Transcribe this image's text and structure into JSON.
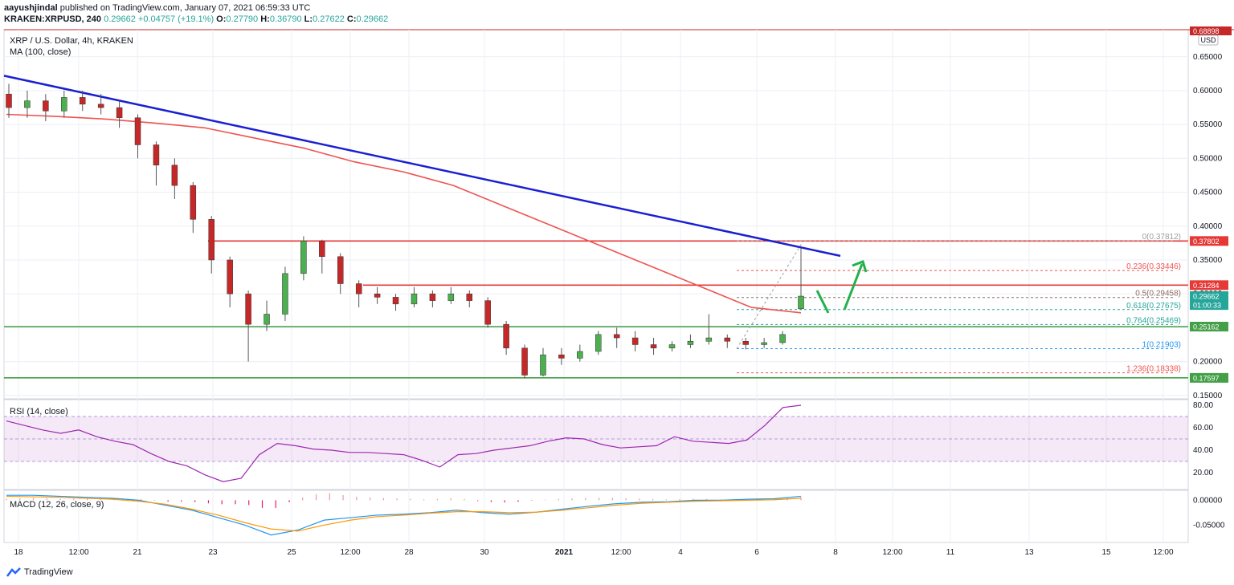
{
  "header": {
    "publisher": "aayushjindal",
    "published_text": "published on TradingView.com, January 07, 2021 06:59:33 UTC",
    "symbol": "KRAKEN:XRPUSD, 240",
    "last": "0.29662",
    "change": "+0.04757 (+19.1%)",
    "ohlc": [
      {
        "k": "O:",
        "v": "0.27790"
      },
      {
        "k": "H:",
        "v": "0.36790"
      },
      {
        "k": "L:",
        "v": "0.27622"
      },
      {
        "k": "C:",
        "v": "0.29662"
      }
    ]
  },
  "main_pane": {
    "title": "XRP / U.S. Dollar, 4h, KRAKEN",
    "indicator": "MA (100, close)",
    "currency": "USD",
    "top_label": "0.68898"
  },
  "rsi_pane": {
    "title": "RSI (14, close)"
  },
  "macd_pane": {
    "title": "MACD (12, 26, close, 9)"
  },
  "footer": {
    "brand": "TradingView"
  },
  "colors": {
    "up": "#26a69a",
    "down": "#ef5350",
    "candle_up": "#4caf50",
    "candle_down": "#c62828",
    "trendline": "#1a1fd1",
    "ma": "#ef5350",
    "resistance": "#e53935",
    "support": "#43a047",
    "arrow": "#22b14c",
    "rsi": "#9c27b0",
    "macd": "#2196f3",
    "signal": "#ff9800"
  },
  "chart_data": [
    {
      "type": "candlestick",
      "title": "XRP / U.S. Dollar, 4h, KRAKEN",
      "x_ticks": [
        "18",
        "12:00",
        "21",
        "23",
        "25",
        "12:00",
        "28",
        "30",
        "2021",
        "12:00",
        "4",
        "6",
        "8",
        "12:00",
        "11",
        "13",
        "15",
        "12:00"
      ],
      "y_ticks": [
        "0.65000",
        "0.60000",
        "0.55000",
        "0.50000",
        "0.45000",
        "0.40000",
        "0.35000",
        "0.30000",
        "0.25000",
        "0.20000",
        "0.15000"
      ],
      "ylim": [
        0.145,
        0.69
      ],
      "series": [
        {
          "name": "MA (100, close)",
          "values": [
            0.565,
            0.562,
            0.558,
            0.552,
            0.545,
            0.53,
            0.515,
            0.495,
            0.48,
            0.46,
            0.43,
            0.4,
            0.37,
            0.34,
            0.31,
            0.28,
            0.272
          ]
        },
        {
          "name": "Trend line",
          "from": [
            0.622,
            "start"
          ],
          "to": [
            0.356,
            "~Jan 8"
          ]
        }
      ],
      "candles": [
        [
          0.595,
          0.575,
          0.61,
          0.56
        ],
        [
          0.575,
          0.585,
          0.6,
          0.56
        ],
        [
          0.585,
          0.57,
          0.595,
          0.555
        ],
        [
          0.57,
          0.59,
          0.6,
          0.56
        ],
        [
          0.59,
          0.58,
          0.6,
          0.57
        ],
        [
          0.58,
          0.575,
          0.595,
          0.565
        ],
        [
          0.575,
          0.56,
          0.585,
          0.545
        ],
        [
          0.56,
          0.52,
          0.565,
          0.5
        ],
        [
          0.52,
          0.49,
          0.525,
          0.46
        ],
        [
          0.49,
          0.46,
          0.5,
          0.44
        ],
        [
          0.46,
          0.41,
          0.465,
          0.39
        ],
        [
          0.41,
          0.35,
          0.415,
          0.33
        ],
        [
          0.35,
          0.3,
          0.355,
          0.28
        ],
        [
          0.3,
          0.255,
          0.305,
          0.2
        ],
        [
          0.255,
          0.27,
          0.29,
          0.245
        ],
        [
          0.27,
          0.33,
          0.34,
          0.26
        ],
        [
          0.33,
          0.378,
          0.385,
          0.32
        ],
        [
          0.378,
          0.355,
          0.38,
          0.33
        ],
        [
          0.355,
          0.315,
          0.36,
          0.3
        ],
        [
          0.315,
          0.3,
          0.32,
          0.28
        ],
        [
          0.3,
          0.295,
          0.31,
          0.285
        ],
        [
          0.295,
          0.285,
          0.3,
          0.275
        ],
        [
          0.285,
          0.3,
          0.31,
          0.28
        ],
        [
          0.3,
          0.29,
          0.305,
          0.28
        ],
        [
          0.29,
          0.3,
          0.31,
          0.285
        ],
        [
          0.3,
          0.29,
          0.305,
          0.28
        ],
        [
          0.29,
          0.255,
          0.295,
          0.25
        ],
        [
          0.255,
          0.22,
          0.26,
          0.21
        ],
        [
          0.22,
          0.18,
          0.225,
          0.175
        ],
        [
          0.18,
          0.21,
          0.22,
          0.178
        ],
        [
          0.21,
          0.205,
          0.22,
          0.195
        ],
        [
          0.205,
          0.215,
          0.225,
          0.2
        ],
        [
          0.215,
          0.24,
          0.245,
          0.21
        ],
        [
          0.24,
          0.235,
          0.25,
          0.22
        ],
        [
          0.235,
          0.225,
          0.245,
          0.215
        ],
        [
          0.225,
          0.22,
          0.235,
          0.21
        ],
        [
          0.22,
          0.225,
          0.23,
          0.215
        ],
        [
          0.225,
          0.23,
          0.24,
          0.22
        ],
        [
          0.23,
          0.235,
          0.27,
          0.225
        ],
        [
          0.235,
          0.23,
          0.24,
          0.22
        ],
        [
          0.23,
          0.225,
          0.235,
          0.218
        ],
        [
          0.225,
          0.228,
          0.235,
          0.22
        ],
        [
          0.228,
          0.24,
          0.245,
          0.225
        ],
        [
          0.2779,
          0.29662,
          0.3679,
          0.27622
        ]
      ],
      "levels": [
        {
          "label": "0.37802",
          "value": 0.37802,
          "color": "#e53935"
        },
        {
          "label": "0.31284",
          "value": 0.31284,
          "color": "#e53935"
        },
        {
          "label": "0.29662",
          "value": 0.29662,
          "color": "#26a69a"
        },
        {
          "label": "01:00:33",
          "value": 0.2835,
          "color": "#26a69a"
        },
        {
          "label": "0.25162",
          "value": 0.25162,
          "color": "#43a047"
        },
        {
          "label": "0.17597",
          "value": 0.17597,
          "color": "#43a047"
        }
      ],
      "fibonacci": [
        {
          "label": "0(0.37812)",
          "value": 0.37812,
          "color": "#9e9e9e"
        },
        {
          "label": "0.236(0.33446)",
          "value": 0.33446,
          "color": "#ef5350"
        },
        {
          "label": "0.5(0.29458)",
          "value": 0.29458,
          "color": "#8d6e63"
        },
        {
          "label": "0.618(0.27675)",
          "value": 0.27675,
          "color": "#26a69a"
        },
        {
          "label": "0.764(0.25469)",
          "value": 0.25469,
          "color": "#26a69a"
        },
        {
          "label": "1(0.21903)",
          "value": 0.21903,
          "color": "#2196f3"
        },
        {
          "label": "1.236(0.18338)",
          "value": 0.18338,
          "color": "#ef5350"
        }
      ]
    },
    {
      "type": "line",
      "title": "RSI (14, close)",
      "y_ticks": [
        "80.00",
        "60.00",
        "40.00",
        "20.00"
      ],
      "ylim": [
        5,
        85
      ],
      "band": [
        30,
        70
      ],
      "series": [
        {
          "name": "RSI",
          "values": [
            66,
            62,
            58,
            55,
            58,
            52,
            48,
            45,
            37,
            30,
            26,
            18,
            12,
            15,
            36,
            46,
            44,
            41,
            40,
            38,
            38,
            37,
            36,
            31,
            25,
            36,
            37,
            40,
            42,
            44,
            48,
            51,
            50,
            45,
            42,
            43,
            44,
            52,
            48,
            47,
            46,
            49,
            62,
            78,
            80
          ]
        }
      ]
    },
    {
      "type": "bar+line",
      "title": "MACD (12, 26, close, 9)",
      "y_ticks": [
        "0.00000",
        "-0.05000"
      ],
      "ylim": [
        -0.085,
        0.02
      ],
      "series": [
        {
          "name": "MACD",
          "values": [
            0.01,
            0.01,
            0.008,
            0.006,
            0.004,
            0.0,
            -0.01,
            -0.02,
            -0.035,
            -0.05,
            -0.07,
            -0.06,
            -0.04,
            -0.035,
            -0.03,
            -0.028,
            -0.025,
            -0.02,
            -0.025,
            -0.028,
            -0.024,
            -0.018,
            -0.012,
            -0.007,
            -0.004,
            -0.003,
            0.0,
            0.0,
            0.002,
            0.003,
            0.008
          ]
        },
        {
          "name": "Signal",
          "values": [
            0.008,
            0.007,
            0.006,
            0.004,
            0.002,
            -0.002,
            -0.008,
            -0.018,
            -0.03,
            -0.045,
            -0.058,
            -0.062,
            -0.05,
            -0.04,
            -0.033,
            -0.03,
            -0.026,
            -0.023,
            -0.023,
            -0.025,
            -0.024,
            -0.02,
            -0.015,
            -0.01,
            -0.006,
            -0.004,
            -0.002,
            -0.001,
            0.0,
            0.001,
            0.004
          ]
        }
      ]
    }
  ]
}
